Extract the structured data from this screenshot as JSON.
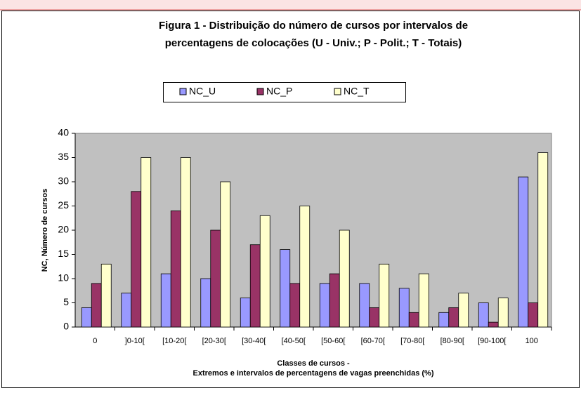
{
  "chart_data": {
    "type": "bar",
    "title": [
      "Figura 1 - Distribuição do número de cursos por  intervalos de",
      "percentagens de colocações (U - Univ.; P - Polit.; T - Totais)"
    ],
    "x_label": [
      "Classes de cursos -",
      "Extremos e intervalos de percentagens de vagas preenchidas (%)"
    ],
    "y_label": "NC, Número de cursos",
    "categories": [
      "0",
      "]0-10[",
      "[10-20[",
      "[20-30[",
      "[30-40[",
      "[40-50[",
      "[50-60[",
      "[60-70[",
      "[70-80[",
      "[80-90[",
      "[90-100[",
      "100"
    ],
    "series": [
      {
        "name": "NC_U",
        "color": "#9999ff",
        "values": [
          4,
          7,
          11,
          10,
          6,
          16,
          9,
          9,
          8,
          3,
          5,
          31
        ]
      },
      {
        "name": "NC_P",
        "color": "#993366",
        "values": [
          9,
          28,
          24,
          20,
          17,
          9,
          11,
          4,
          3,
          4,
          1,
          5
        ]
      },
      {
        "name": "NC_T",
        "color": "#ffffcc",
        "values": [
          13,
          35,
          35,
          30,
          23,
          25,
          20,
          13,
          11,
          7,
          6,
          36
        ]
      }
    ],
    "ylim": [
      0,
      40
    ],
    "yticks": [
      0,
      5,
      10,
      15,
      20,
      25,
      30,
      35,
      40
    ],
    "grid": false,
    "legend": "top"
  }
}
